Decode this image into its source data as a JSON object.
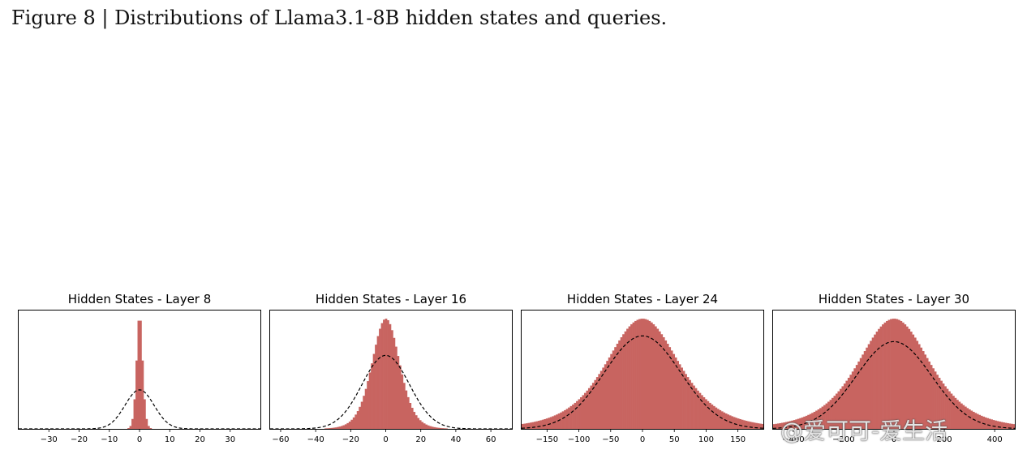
{
  "figure": {
    "caption": "Figure 8 | Distributions of Llama3.1-8B hidden states and queries."
  },
  "colors": {
    "bar": "#c86460",
    "fit": "#000000"
  },
  "watermark": "@爱可可-爱生活",
  "chart_data": [
    {
      "type": "bar",
      "title": "Hidden States - Layer 8",
      "xlim": [
        -40,
        40
      ],
      "xticks": [
        -30,
        -20,
        -10,
        0,
        10,
        20,
        30
      ],
      "dist": {
        "center": 0,
        "scale": 1.0,
        "peak": 1.0,
        "tail": 2.0
      },
      "gaussian": {
        "mean": 0,
        "std": 4.8,
        "peak": 0.34
      }
    },
    {
      "type": "bar",
      "title": "Hidden States - Layer 16",
      "xlim": [
        -66,
        72
      ],
      "xticks": [
        -60,
        -40,
        -20,
        0,
        20,
        40,
        60
      ],
      "dist": {
        "center": 0,
        "scale": 8.0,
        "peak": 0.96,
        "tail": 1.2
      },
      "gaussian": {
        "mean": 0,
        "std": 13.5,
        "peak": 0.64
      }
    },
    {
      "type": "bar",
      "title": "Hidden States - Layer 24",
      "xlim": [
        -190,
        190
      ],
      "xticks": [
        -150,
        -100,
        -50,
        0,
        50,
        100,
        150
      ],
      "dist": {
        "center": 0,
        "scale": 60,
        "peak": 0.96,
        "tail": 0.5
      },
      "gaussian": {
        "mean": 0,
        "std": 60,
        "peak": 0.81
      }
    },
    {
      "type": "bar",
      "title": "Hidden States - Layer 30",
      "xlim": [
        -480,
        480
      ],
      "xticks": [
        -400,
        -200,
        0,
        200,
        400
      ],
      "dist": {
        "center": 0,
        "scale": 150,
        "peak": 0.96,
        "tail": 0.5
      },
      "gaussian": {
        "mean": 0,
        "std": 150,
        "peak": 0.76
      }
    }
  ]
}
